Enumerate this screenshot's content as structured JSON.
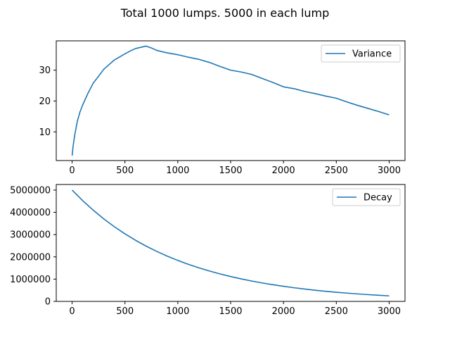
{
  "figure": {
    "title": "Total 1000 lumps. 5000 in each lump"
  },
  "chart_data": [
    {
      "type": "line",
      "title": "",
      "xlabel": "",
      "ylabel": "",
      "xlim": [
        -150,
        3150
      ],
      "ylim": [
        0.7,
        39.5
      ],
      "xticks": [
        0,
        500,
        1000,
        1500,
        2000,
        2500,
        3000
      ],
      "xtick_labels": [
        "0",
        "500",
        "1000",
        "1500",
        "2000",
        "2500",
        "3000"
      ],
      "yticks": [
        10,
        20,
        30
      ],
      "ytick_labels": [
        "10",
        "20",
        "30"
      ],
      "grid": false,
      "legend": "top-right",
      "series": [
        {
          "name": "Variance",
          "color": "#1f77b4",
          "x": [
            0,
            10,
            25,
            50,
            75,
            100,
            150,
            200,
            250,
            300,
            400,
            500,
            550,
            600,
            650,
            700,
            750,
            800,
            900,
            1000,
            1100,
            1200,
            1300,
            1400,
            1500,
            1600,
            1700,
            1800,
            1900,
            2000,
            2100,
            2200,
            2300,
            2400,
            2500,
            2600,
            2700,
            2800,
            2900,
            3000
          ],
          "y": [
            2.3,
            5.5,
            9.0,
            13.5,
            16.5,
            18.7,
            22.5,
            25.8,
            28.0,
            30.3,
            33.3,
            35.3,
            36.2,
            37.0,
            37.4,
            37.8,
            37.2,
            36.4,
            35.6,
            35.0,
            34.2,
            33.5,
            32.5,
            31.2,
            30.0,
            29.4,
            28.6,
            27.3,
            26.0,
            24.6,
            24.0,
            23.1,
            22.4,
            21.6,
            20.9,
            19.7,
            18.6,
            17.6,
            16.6,
            15.5
          ]
        }
      ]
    },
    {
      "type": "line",
      "title": "",
      "xlabel": "",
      "ylabel": "",
      "xlim": [
        -150,
        3150
      ],
      "ylim": [
        0,
        5250000
      ],
      "xticks": [
        0,
        500,
        1000,
        1500,
        2000,
        2500,
        3000
      ],
      "xtick_labels": [
        "0",
        "500",
        "1000",
        "1500",
        "2000",
        "2500",
        "3000"
      ],
      "yticks": [
        0,
        1000000,
        2000000,
        3000000,
        4000000,
        5000000
      ],
      "ytick_labels": [
        "0",
        "1000000",
        "2000000",
        "3000000",
        "4000000",
        "5000000"
      ],
      "grid": false,
      "legend": "top-right",
      "series": [
        {
          "name": "Decay",
          "color": "#1f77b4",
          "x": [
            0,
            100,
            200,
            300,
            400,
            500,
            600,
            700,
            800,
            900,
            1000,
            1100,
            1200,
            1300,
            1400,
            1500,
            1600,
            1700,
            1800,
            1900,
            2000,
            2100,
            2200,
            2300,
            2400,
            2500,
            2600,
            2700,
            2800,
            2900,
            3000
          ],
          "y": [
            5000000,
            4524000,
            4094000,
            3704000,
            3352000,
            3033000,
            2744000,
            2483000,
            2247000,
            2033000,
            1840000,
            1665000,
            1506000,
            1363000,
            1233000,
            1116000,
            1010000,
            913500,
            826600,
            748000,
            676700,
            612300,
            554100,
            501400,
            453700,
            410500,
            371400,
            336100,
            304100,
            275200,
            249000
          ]
        }
      ]
    }
  ]
}
